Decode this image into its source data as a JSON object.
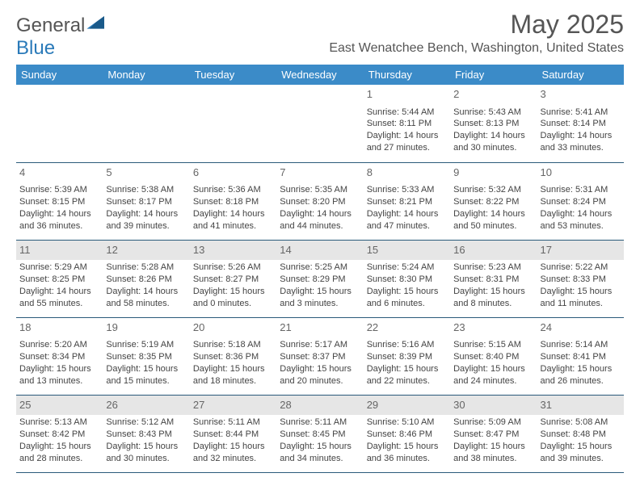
{
  "brand": {
    "part1": "General",
    "part2": "Blue"
  },
  "header": {
    "month_title": "May 2025",
    "location": "East Wenatchee Bench, Washington, United States"
  },
  "colors": {
    "header_bg": "#3b8bc8",
    "border": "#2a5a7a",
    "shade": "#e6e6e6",
    "text": "#444444"
  },
  "weekdays": [
    "Sunday",
    "Monday",
    "Tuesday",
    "Wednesday",
    "Thursday",
    "Friday",
    "Saturday"
  ],
  "weeks": [
    [
      {
        "empty": true
      },
      {
        "empty": true
      },
      {
        "empty": true
      },
      {
        "empty": true
      },
      {
        "date": "1",
        "sunrise": "5:44 AM",
        "sunset": "8:11 PM",
        "daylight": "14 hours and 27 minutes."
      },
      {
        "date": "2",
        "sunrise": "5:43 AM",
        "sunset": "8:13 PM",
        "daylight": "14 hours and 30 minutes."
      },
      {
        "date": "3",
        "sunrise": "5:41 AM",
        "sunset": "8:14 PM",
        "daylight": "14 hours and 33 minutes."
      }
    ],
    [
      {
        "date": "4",
        "sunrise": "5:39 AM",
        "sunset": "8:15 PM",
        "daylight": "14 hours and 36 minutes."
      },
      {
        "date": "5",
        "sunrise": "5:38 AM",
        "sunset": "8:17 PM",
        "daylight": "14 hours and 39 minutes."
      },
      {
        "date": "6",
        "sunrise": "5:36 AM",
        "sunset": "8:18 PM",
        "daylight": "14 hours and 41 minutes."
      },
      {
        "date": "7",
        "sunrise": "5:35 AM",
        "sunset": "8:20 PM",
        "daylight": "14 hours and 44 minutes."
      },
      {
        "date": "8",
        "sunrise": "5:33 AM",
        "sunset": "8:21 PM",
        "daylight": "14 hours and 47 minutes."
      },
      {
        "date": "9",
        "sunrise": "5:32 AM",
        "sunset": "8:22 PM",
        "daylight": "14 hours and 50 minutes."
      },
      {
        "date": "10",
        "sunrise": "5:31 AM",
        "sunset": "8:24 PM",
        "daylight": "14 hours and 53 minutes."
      }
    ],
    [
      {
        "date": "11",
        "sunrise": "5:29 AM",
        "sunset": "8:25 PM",
        "daylight": "14 hours and 55 minutes."
      },
      {
        "date": "12",
        "sunrise": "5:28 AM",
        "sunset": "8:26 PM",
        "daylight": "14 hours and 58 minutes."
      },
      {
        "date": "13",
        "sunrise": "5:26 AM",
        "sunset": "8:27 PM",
        "daylight": "15 hours and 0 minutes."
      },
      {
        "date": "14",
        "sunrise": "5:25 AM",
        "sunset": "8:29 PM",
        "daylight": "15 hours and 3 minutes."
      },
      {
        "date": "15",
        "sunrise": "5:24 AM",
        "sunset": "8:30 PM",
        "daylight": "15 hours and 6 minutes."
      },
      {
        "date": "16",
        "sunrise": "5:23 AM",
        "sunset": "8:31 PM",
        "daylight": "15 hours and 8 minutes."
      },
      {
        "date": "17",
        "sunrise": "5:22 AM",
        "sunset": "8:33 PM",
        "daylight": "15 hours and 11 minutes."
      }
    ],
    [
      {
        "date": "18",
        "sunrise": "5:20 AM",
        "sunset": "8:34 PM",
        "daylight": "15 hours and 13 minutes."
      },
      {
        "date": "19",
        "sunrise": "5:19 AM",
        "sunset": "8:35 PM",
        "daylight": "15 hours and 15 minutes."
      },
      {
        "date": "20",
        "sunrise": "5:18 AM",
        "sunset": "8:36 PM",
        "daylight": "15 hours and 18 minutes."
      },
      {
        "date": "21",
        "sunrise": "5:17 AM",
        "sunset": "8:37 PM",
        "daylight": "15 hours and 20 minutes."
      },
      {
        "date": "22",
        "sunrise": "5:16 AM",
        "sunset": "8:39 PM",
        "daylight": "15 hours and 22 minutes."
      },
      {
        "date": "23",
        "sunrise": "5:15 AM",
        "sunset": "8:40 PM",
        "daylight": "15 hours and 24 minutes."
      },
      {
        "date": "24",
        "sunrise": "5:14 AM",
        "sunset": "8:41 PM",
        "daylight": "15 hours and 26 minutes."
      }
    ],
    [
      {
        "date": "25",
        "sunrise": "5:13 AM",
        "sunset": "8:42 PM",
        "daylight": "15 hours and 28 minutes."
      },
      {
        "date": "26",
        "sunrise": "5:12 AM",
        "sunset": "8:43 PM",
        "daylight": "15 hours and 30 minutes."
      },
      {
        "date": "27",
        "sunrise": "5:11 AM",
        "sunset": "8:44 PM",
        "daylight": "15 hours and 32 minutes."
      },
      {
        "date": "28",
        "sunrise": "5:11 AM",
        "sunset": "8:45 PM",
        "daylight": "15 hours and 34 minutes."
      },
      {
        "date": "29",
        "sunrise": "5:10 AM",
        "sunset": "8:46 PM",
        "daylight": "15 hours and 36 minutes."
      },
      {
        "date": "30",
        "sunrise": "5:09 AM",
        "sunset": "8:47 PM",
        "daylight": "15 hours and 38 minutes."
      },
      {
        "date": "31",
        "sunrise": "5:08 AM",
        "sunset": "8:48 PM",
        "daylight": "15 hours and 39 minutes."
      }
    ]
  ],
  "labels": {
    "sunrise": "Sunrise: ",
    "sunset": "Sunset: ",
    "daylight": "Daylight: "
  },
  "shaded_rows": [
    2,
    4
  ]
}
